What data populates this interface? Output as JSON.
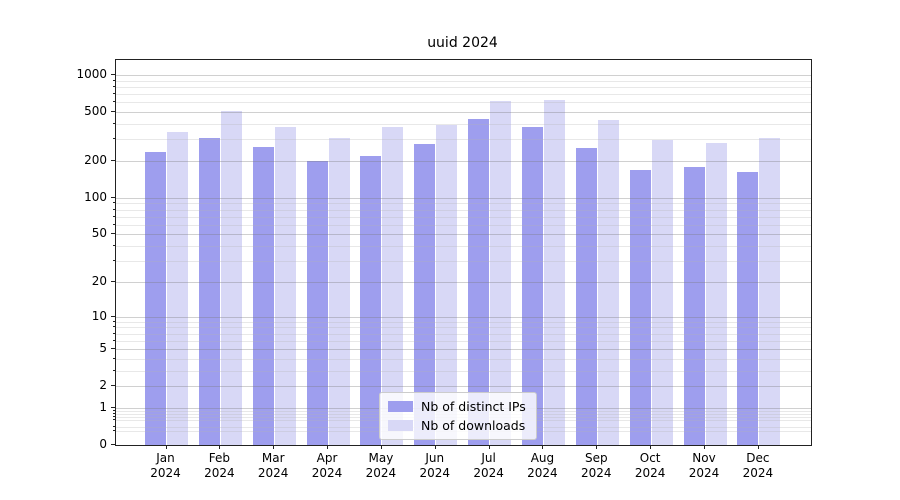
{
  "chart_data": {
    "type": "bar",
    "title": "uuid 2024",
    "categories": [
      "Jan",
      "Feb",
      "Mar",
      "Apr",
      "May",
      "Jun",
      "Jul",
      "Aug",
      "Sep",
      "Oct",
      "Nov",
      "Dec"
    ],
    "year_label": "2024",
    "series": [
      {
        "name": "Nb of distinct IPs",
        "color": "#9e9eee",
        "values": [
          237,
          309,
          262,
          201,
          220,
          275,
          437,
          378,
          257,
          169,
          180,
          164
        ]
      },
      {
        "name": "Nb of downloads",
        "color": "#d8d8f6",
        "values": [
          346,
          510,
          380,
          309,
          376,
          392,
          615,
          623,
          428,
          295,
          279,
          309
        ]
      }
    ],
    "scale": "log1p",
    "ylim": [
      0,
      1320
    ],
    "y_ticks": [
      1000,
      500,
      200,
      100,
      50,
      20,
      10,
      5,
      2,
      1,
      0
    ],
    "y_minor_gridlines": [
      0.3,
      0.4,
      0.6,
      0.7,
      0.8,
      0.9,
      3,
      4,
      6,
      7,
      8,
      9,
      30,
      40,
      60,
      70,
      80,
      90,
      300,
      400,
      600,
      700,
      800,
      900
    ],
    "grid": true,
    "legend_position": "bottom-center"
  },
  "colors": {
    "background": "#ffffff",
    "spine": "#222222",
    "major_grid": "#cfcfcf",
    "minor_grid": "#e8e8e8",
    "legend_border": "#cccccc"
  }
}
